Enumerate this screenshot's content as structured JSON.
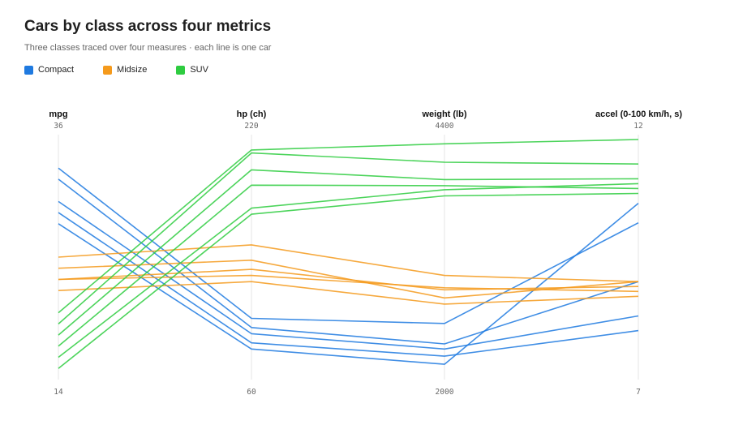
{
  "header": {
    "title": "Cars by class across four metrics",
    "subtitle": "Three classes traced over four measures · each line is one car"
  },
  "chart_data": {
    "type": "parallel-coordinates",
    "title": "Cars by class across four metrics",
    "subtitle": "Three classes traced over four measures · each line is one car",
    "axes": [
      {
        "key": "mpg",
        "label": "mpg",
        "min": 14,
        "max": 36,
        "min_label": "14",
        "max_label": "36"
      },
      {
        "key": "hp",
        "label": "hp (ch)",
        "min": 60,
        "max": 220,
        "min_label": "60",
        "max_label": "220"
      },
      {
        "key": "weight",
        "label": "weight (lb)",
        "min": 2000,
        "max": 4400,
        "min_label": "2000",
        "max_label": "4400"
      },
      {
        "key": "accel",
        "label": "accel (0-100 km/h, s)",
        "min": 7,
        "max": 12,
        "min_label": "7",
        "max_label": "12"
      }
    ],
    "series": [
      {
        "name": "Compact",
        "color": "#1f7ae0",
        "records": [
          [
            33,
            100,
            2550,
            10.2
          ],
          [
            32,
            94,
            2350,
            9.0
          ],
          [
            30,
            90,
            2300,
            8.3
          ],
          [
            29,
            84,
            2230,
            8.0
          ],
          [
            28,
            80,
            2150,
            10.6
          ]
        ]
      },
      {
        "name": "Midsize",
        "color": "#f59a1c",
        "records": [
          [
            25,
            148,
            3020,
            9.0
          ],
          [
            24,
            138,
            2800,
            9.0
          ],
          [
            23,
            132,
            2880,
            8.9
          ],
          [
            23,
            128,
            2900,
            8.8
          ],
          [
            22,
            124,
            2740,
            8.7
          ]
        ]
      },
      {
        "name": "SUV",
        "color": "#2ecc40",
        "records": [
          [
            20,
            210,
            4310,
            11.9
          ],
          [
            19,
            208,
            4130,
            11.4
          ],
          [
            18,
            197,
            3960,
            11.1
          ],
          [
            17,
            187,
            3900,
            10.9
          ],
          [
            16,
            172,
            3860,
            11.0
          ],
          [
            15,
            168,
            3800,
            10.8
          ]
        ]
      }
    ],
    "legend_position": "top-left",
    "grid": false
  }
}
